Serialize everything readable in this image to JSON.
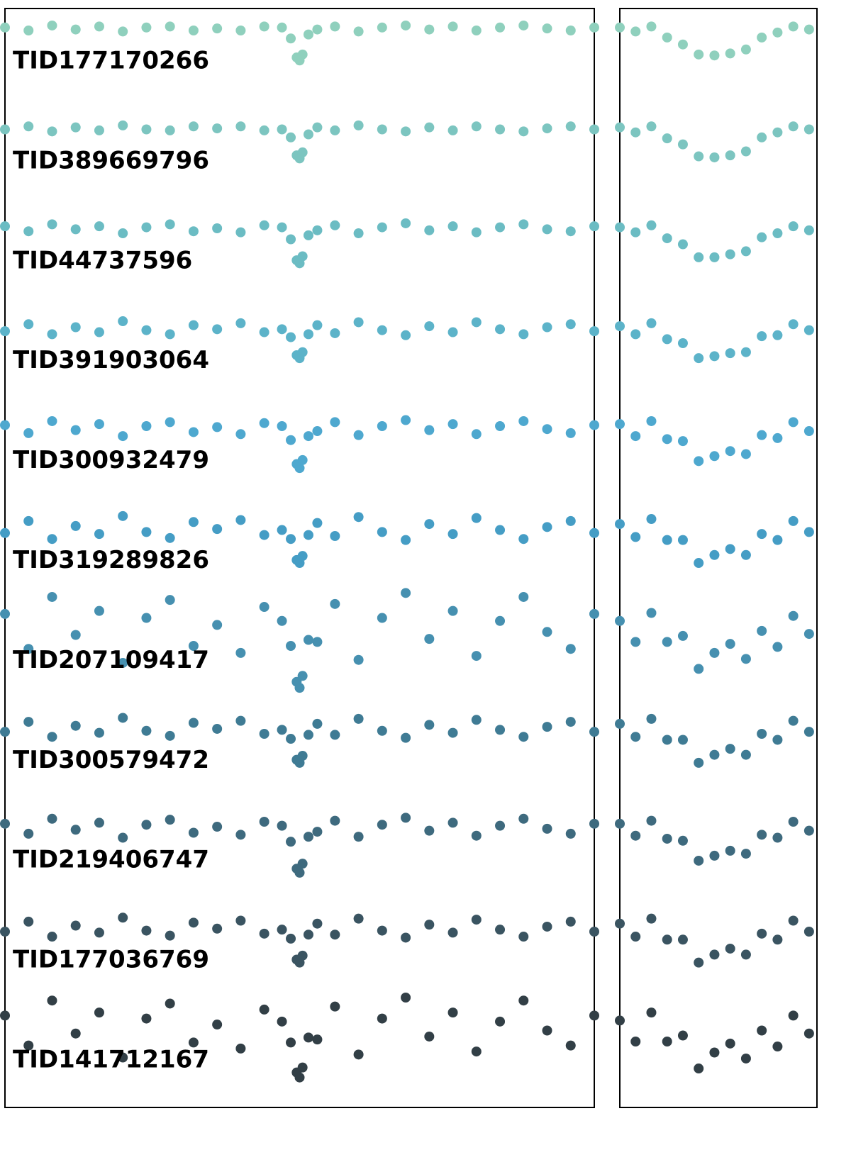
{
  "chart_data": [
    {
      "type": "scatter",
      "x": [
        0,
        4,
        8,
        12,
        16,
        20,
        24,
        28,
        32,
        36,
        40,
        44,
        47,
        48.5,
        49.5,
        50,
        50.5,
        51.5,
        53,
        56,
        60,
        64,
        68,
        72,
        76,
        80,
        84,
        88,
        92,
        96,
        100
      ],
      "xlim": [
        0,
        100
      ],
      "ylim": [
        -10.8,
        0.2
      ],
      "series": [
        {
          "name": "TID177170266",
          "color": "#8fd0bd",
          "values": [
            0.01,
            -0.02,
            0.03,
            -0.01,
            0.02,
            -0.03,
            0.01,
            0.02,
            -0.02,
            0,
            -0.02,
            0.02,
            0.01,
            -0.1,
            -0.29,
            -0.32,
            -0.26,
            -0.06,
            -0.01,
            0.02,
            -0.03,
            0.01,
            0.03,
            -0.01,
            0.02,
            -0.02,
            0.01,
            0.03,
            0,
            -0.02,
            0.01
          ]
        },
        {
          "name": "TID389669796",
          "color": "#7cc5c0",
          "values": [
            -1.01,
            -0.98,
            -1.03,
            -0.99,
            -1.02,
            -0.97,
            -1.01,
            -1.02,
            -0.98,
            -1,
            -0.98,
            -1.02,
            -1.01,
            -1.09,
            -1.27,
            -1.3,
            -1.24,
            -1.06,
            -0.99,
            -1.02,
            -0.97,
            -1.01,
            -1.03,
            -0.99,
            -1.02,
            -0.98,
            -1.01,
            -1.03,
            -1,
            -0.98,
            -1.01
          ]
        },
        {
          "name": "TID44737596",
          "color": "#6bbcc3",
          "values": [
            -1.98,
            -2.03,
            -1.96,
            -2.01,
            -1.98,
            -2.05,
            -1.99,
            -1.96,
            -2.03,
            -2,
            -2.04,
            -1.97,
            -1.99,
            -2.11,
            -2.32,
            -2.35,
            -2.28,
            -2.07,
            -2.02,
            -1.97,
            -2.05,
            -1.99,
            -1.95,
            -2.02,
            -1.98,
            -2.04,
            -1.99,
            -1.96,
            -2.01,
            -2.03,
            -1.98
          ]
        },
        {
          "name": "TID391903064",
          "color": "#5cb3c9",
          "values": [
            -3.03,
            -2.96,
            -3.06,
            -2.99,
            -3.04,
            -2.93,
            -3.02,
            -3.06,
            -2.97,
            -3.01,
            -2.95,
            -3.04,
            -3.01,
            -3.09,
            -3.27,
            -3.3,
            -3.24,
            -3.06,
            -2.97,
            -3.05,
            -2.94,
            -3.02,
            -3.07,
            -2.98,
            -3.04,
            -2.94,
            -3.01,
            -3.06,
            -2.99,
            -2.96,
            -3.03
          ]
        },
        {
          "name": "TID300932479",
          "color": "#4ea8cf",
          "values": [
            -3.97,
            -4.05,
            -3.93,
            -4.02,
            -3.96,
            -4.08,
            -3.98,
            -3.94,
            -4.04,
            -3.99,
            -4.06,
            -3.95,
            -3.98,
            -4.12,
            -4.36,
            -4.4,
            -4.32,
            -4.08,
            -4.03,
            -3.94,
            -4.07,
            -3.98,
            -3.92,
            -4.02,
            -3.96,
            -4.06,
            -3.98,
            -3.93,
            -4.01,
            -4.05,
            -3.97
          ]
        },
        {
          "name": "TID319289826",
          "color": "#459dc5",
          "values": [
            -5.05,
            -4.93,
            -5.11,
            -4.98,
            -5.06,
            -4.88,
            -5.04,
            -5.1,
            -4.94,
            -5.01,
            -4.92,
            -5.07,
            -5.02,
            -5.11,
            -5.32,
            -5.35,
            -5.28,
            -5.07,
            -4.95,
            -5.08,
            -4.89,
            -5.04,
            -5.12,
            -4.96,
            -5.06,
            -4.9,
            -5.02,
            -5.11,
            -4.99,
            -4.93,
            -5.05
          ]
        },
        {
          "name": "TID207109417",
          "color": "#4690b0",
          "values": [
            -5.86,
            -6.21,
            -5.69,
            -6.07,
            -5.83,
            -6.35,
            -5.9,
            -5.72,
            -6.18,
            -5.97,
            -6.25,
            -5.79,
            -5.93,
            -6.18,
            -6.54,
            -6.6,
            -6.48,
            -6.12,
            -6.14,
            -5.76,
            -6.32,
            -5.9,
            -5.65,
            -6.11,
            -5.83,
            -6.28,
            -5.93,
            -5.69,
            -6.04,
            -6.21,
            -5.86
          ]
        },
        {
          "name": "TID300579472",
          "color": "#3f7b94",
          "values": [
            -7.04,
            -6.94,
            -7.09,
            -6.98,
            -7.05,
            -6.9,
            -7.03,
            -7.08,
            -6.95,
            -7.01,
            -6.93,
            -7.06,
            -7.02,
            -7.11,
            -7.32,
            -7.35,
            -7.28,
            -7.07,
            -6.96,
            -7.07,
            -6.91,
            -7.03,
            -7.1,
            -6.97,
            -7.05,
            -6.92,
            -7.02,
            -7.09,
            -6.99,
            -6.94,
            -7.04
          ]
        },
        {
          "name": "TID219406747",
          "color": "#3e6a7e",
          "values": [
            -7.96,
            -8.06,
            -7.91,
            -8.02,
            -7.95,
            -8.1,
            -7.97,
            -7.92,
            -8.05,
            -7.99,
            -8.07,
            -7.94,
            -7.98,
            -8.14,
            -8.41,
            -8.45,
            -8.36,
            -8.09,
            -8.04,
            -7.93,
            -8.09,
            -7.97,
            -7.9,
            -8.03,
            -7.95,
            -8.08,
            -7.98,
            -7.91,
            -8.01,
            -8.06,
            -7.96
          ]
        },
        {
          "name": "TID177036769",
          "color": "#3a5461",
          "values": [
            -9.04,
            -8.94,
            -9.09,
            -8.98,
            -9.05,
            -8.9,
            -9.03,
            -9.08,
            -8.95,
            -9.01,
            -8.93,
            -9.06,
            -9.02,
            -9.11,
            -9.32,
            -9.35,
            -9.28,
            -9.07,
            -8.96,
            -9.07,
            -8.91,
            -9.03,
            -9.1,
            -8.97,
            -9.05,
            -8.92,
            -9.02,
            -9.09,
            -8.99,
            -8.94,
            -9.04
          ]
        },
        {
          "name": "TID141712167",
          "color": "#323f46",
          "values": [
            -9.88,
            -10.18,
            -9.73,
            -10.06,
            -9.85,
            -10.3,
            -9.91,
            -9.76,
            -10.15,
            -9.97,
            -10.21,
            -9.82,
            -9.94,
            -10.15,
            -10.45,
            -10.5,
            -10.4,
            -10.1,
            -10.12,
            -9.79,
            -10.27,
            -9.91,
            -9.7,
            -10.09,
            -9.85,
            -10.24,
            -9.94,
            -9.73,
            -10.03,
            -10.18,
            -9.88
          ]
        }
      ]
    },
    {
      "type": "scatter",
      "x": [
        0,
        8,
        16,
        24,
        32,
        40,
        48,
        56,
        64,
        72,
        80,
        88,
        96
      ],
      "xlim": [
        0,
        100
      ],
      "ylim": [
        -10.8,
        0.2
      ],
      "series": [
        {
          "color": "#8fd0bd",
          "values": [
            0.01,
            -0.03,
            0.02,
            -0.09,
            -0.16,
            -0.26,
            -0.27,
            -0.25,
            -0.21,
            -0.09,
            -0.04,
            0.02,
            -0.01
          ]
        },
        {
          "color": "#7cc5c0",
          "values": [
            -0.99,
            -1.04,
            -0.98,
            -1.1,
            -1.16,
            -1.28,
            -1.29,
            -1.27,
            -1.23,
            -1.09,
            -1.04,
            -0.98,
            -1.01
          ]
        },
        {
          "color": "#6bbcc3",
          "values": [
            -1.99,
            -2.04,
            -1.97,
            -2.1,
            -2.16,
            -2.29,
            -2.29,
            -2.26,
            -2.23,
            -2.09,
            -2.05,
            -1.98,
            -2.02
          ]
        },
        {
          "color": "#5cb3c9",
          "values": [
            -2.98,
            -3.06,
            -2.95,
            -3.11,
            -3.15,
            -3.3,
            -3.28,
            -3.25,
            -3.24,
            -3.08,
            -3.07,
            -2.96,
            -3.02
          ]
        },
        {
          "color": "#4ea8cf",
          "values": [
            -3.96,
            -4.08,
            -3.93,
            -4.11,
            -4.13,
            -4.33,
            -4.28,
            -4.23,
            -4.26,
            -4.07,
            -4.1,
            -3.94,
            -4.03
          ]
        },
        {
          "color": "#459dc5",
          "values": [
            -4.96,
            -5.09,
            -4.91,
            -5.12,
            -5.12,
            -5.35,
            -5.27,
            -5.21,
            -5.27,
            -5.06,
            -5.12,
            -4.93,
            -5.04
          ]
        },
        {
          "color": "#4690b0",
          "values": [
            -5.93,
            -6.14,
            -5.85,
            -6.14,
            -6.08,
            -6.41,
            -6.25,
            -6.16,
            -6.31,
            -6.03,
            -6.19,
            -5.88,
            -6.06
          ]
        },
        {
          "color": "#3f7b94",
          "values": [
            -6.96,
            -7.09,
            -6.91,
            -7.12,
            -7.12,
            -7.35,
            -7.27,
            -7.21,
            -7.27,
            -7.06,
            -7.12,
            -6.93,
            -7.04
          ]
        },
        {
          "color": "#3e6a7e",
          "values": [
            -7.96,
            -8.08,
            -7.93,
            -8.11,
            -8.13,
            -8.33,
            -8.28,
            -8.23,
            -8.26,
            -8.07,
            -8.1,
            -7.94,
            -8.03
          ]
        },
        {
          "color": "#3a5461",
          "values": [
            -8.96,
            -9.09,
            -8.91,
            -9.12,
            -9.12,
            -9.35,
            -9.27,
            -9.21,
            -9.27,
            -9.06,
            -9.12,
            -8.93,
            -9.04
          ]
        },
        {
          "color": "#323f46",
          "values": [
            -9.93,
            -10.14,
            -9.85,
            -10.14,
            -10.08,
            -10.41,
            -10.25,
            -10.16,
            -10.31,
            -10.03,
            -10.19,
            -9.88,
            -10.06
          ]
        }
      ]
    }
  ]
}
